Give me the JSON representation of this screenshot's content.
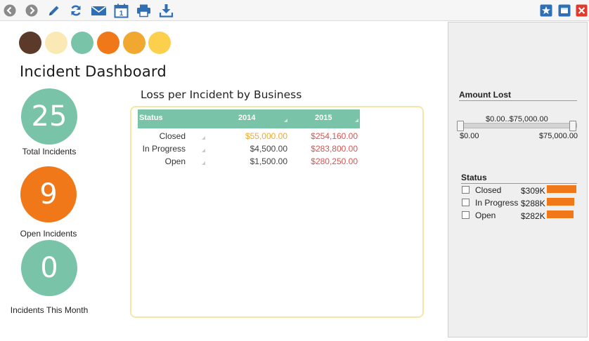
{
  "toolbar": {
    "left_icons": [
      "back-icon",
      "forward-icon",
      "edit-icon",
      "refresh-icon",
      "email-icon",
      "calendar-icon",
      "print-icon",
      "download-icon"
    ],
    "calendar_day": "1",
    "right_icons": [
      "favorite-icon",
      "maximize-icon",
      "close-icon"
    ]
  },
  "palette": [
    "#5b3a29",
    "#fbe9b5",
    "#79c3a8",
    "#f07818",
    "#f0a830",
    "#fcd04c"
  ],
  "page_title": "Incident Dashboard",
  "kpis": [
    {
      "value": "25",
      "label": "Total Incidents",
      "color": "#79c3a8"
    },
    {
      "value": "9",
      "label": "Open Incidents",
      "color": "#f07818"
    },
    {
      "value": "0",
      "label": "Incidents This Month",
      "color": "#79c3a8"
    }
  ],
  "table": {
    "title": "Loss per Incident by Business",
    "headers": {
      "status": "Status",
      "y2014": "2014",
      "y2015": "2015"
    },
    "rows": [
      {
        "status": "Closed",
        "y2014": "$55,000.00",
        "y2015": "$254,160.00",
        "color2014": "#f0a830",
        "color2015": "#d9534f"
      },
      {
        "status": "In Progress",
        "y2014": "$4,500.00",
        "y2015": "$283,800.00",
        "color2014": "#444444",
        "color2015": "#d9534f"
      },
      {
        "status": "Open",
        "y2014": "$1,500.00",
        "y2015": "$280,250.00",
        "color2014": "#444444",
        "color2015": "#d9534f"
      }
    ]
  },
  "filters": {
    "amount": {
      "heading": "Amount Lost",
      "range_label": "$0.00..$75,000.00",
      "min_label": "$0.00",
      "max_label": "$75,000.00"
    },
    "status": {
      "heading": "Status",
      "items": [
        {
          "label": "Closed",
          "value": "$309K",
          "fraction": 1.0
        },
        {
          "label": "In Progress",
          "value": "$288K",
          "fraction": 0.93
        },
        {
          "label": "Open",
          "value": "$282K",
          "fraction": 0.91
        }
      ],
      "bar_color": "#f07818"
    }
  }
}
